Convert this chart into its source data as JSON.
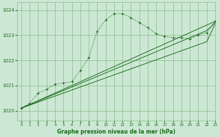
{
  "bg_color": "#cce8d4",
  "grid_color": "#88bb88",
  "line_color": "#1a6b1a",
  "title": "Graphe pression niveau de la mer (hPa)",
  "xlim": [
    -0.5,
    23
  ],
  "ylim": [
    1019.6,
    1024.3
  ],
  "yticks": [
    1020,
    1021,
    1022,
    1023,
    1024
  ],
  "xticks": [
    0,
    1,
    2,
    3,
    4,
    5,
    6,
    7,
    8,
    9,
    10,
    11,
    12,
    13,
    14,
    15,
    16,
    17,
    18,
    19,
    20,
    21,
    22,
    23
  ],
  "main_series": [
    1020.1,
    1020.3,
    1020.7,
    1020.85,
    1021.05,
    1021.1,
    1021.15,
    1021.6,
    1022.1,
    1023.15,
    1023.6,
    1023.85,
    1023.85,
    1023.7,
    1023.5,
    1023.3,
    1023.05,
    1022.95,
    1022.9,
    1022.9,
    1022.85,
    1023.0,
    1023.1,
    1023.55
  ],
  "linear_series": [
    [
      1020.1,
      1020.25,
      1020.4,
      1020.55,
      1020.7,
      1020.85,
      1021.0,
      1021.15,
      1021.3,
      1021.45,
      1021.6,
      1021.75,
      1021.9,
      1022.05,
      1022.2,
      1022.35,
      1022.5,
      1022.65,
      1022.8,
      1022.95,
      1023.1,
      1023.25,
      1023.4,
      1023.55
    ],
    [
      1020.1,
      1020.24,
      1020.38,
      1020.52,
      1020.66,
      1020.8,
      1020.94,
      1021.08,
      1021.22,
      1021.36,
      1021.5,
      1021.64,
      1021.78,
      1021.92,
      1022.06,
      1022.2,
      1022.34,
      1022.48,
      1022.62,
      1022.76,
      1022.9,
      1023.04,
      1023.18,
      1023.5
    ],
    [
      1020.1,
      1020.22,
      1020.34,
      1020.46,
      1020.58,
      1020.7,
      1020.82,
      1020.94,
      1021.06,
      1021.18,
      1021.3,
      1021.42,
      1021.54,
      1021.66,
      1021.78,
      1021.9,
      1022.02,
      1022.14,
      1022.26,
      1022.38,
      1022.5,
      1022.62,
      1022.74,
      1023.45
    ]
  ]
}
